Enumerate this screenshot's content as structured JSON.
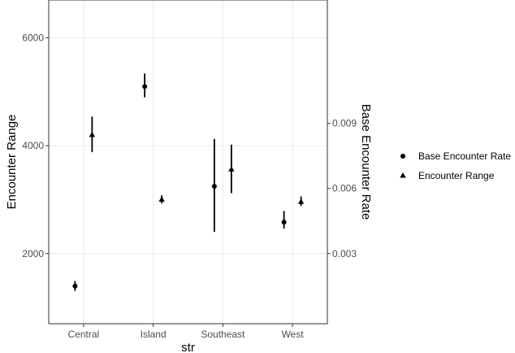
{
  "chart_data": {
    "type": "scatter",
    "xlabel": "str",
    "ylabel_left": "Encounter Range",
    "ylabel_right": "Base Encounter Rate",
    "categories": [
      "Central",
      "Island",
      "Southeast",
      "West"
    ],
    "y_left": {
      "ylim": [
        700,
        6700
      ],
      "ticks": [
        2000,
        4000,
        6000
      ],
      "tick_labels": [
        "2000",
        "4000",
        "6000"
      ]
    },
    "y_right": {
      "ticks": [
        0.003,
        0.006,
        0.009
      ],
      "tick_labels": [
        "0.003",
        "0.006",
        "0.009"
      ]
    },
    "grid": true,
    "legend_position": "right",
    "series": [
      {
        "name": "Base Encounter Rate",
        "marker": "circle",
        "axis": "right",
        "values": [
          0.0015,
          0.0107,
          0.0061,
          0.00445
        ],
        "lower": [
          0.00128,
          0.0102,
          0.004,
          0.00415
        ],
        "upper": [
          0.00174,
          0.0113,
          0.00828,
          0.00496
        ]
      },
      {
        "name": "Encounter Range",
        "marker": "triangle",
        "axis": "left",
        "values": [
          4200,
          3000,
          3560,
          2960
        ],
        "lower": [
          3880,
          2930,
          3120,
          2880
        ],
        "upper": [
          4540,
          3080,
          4020,
          3060
        ]
      }
    ]
  }
}
